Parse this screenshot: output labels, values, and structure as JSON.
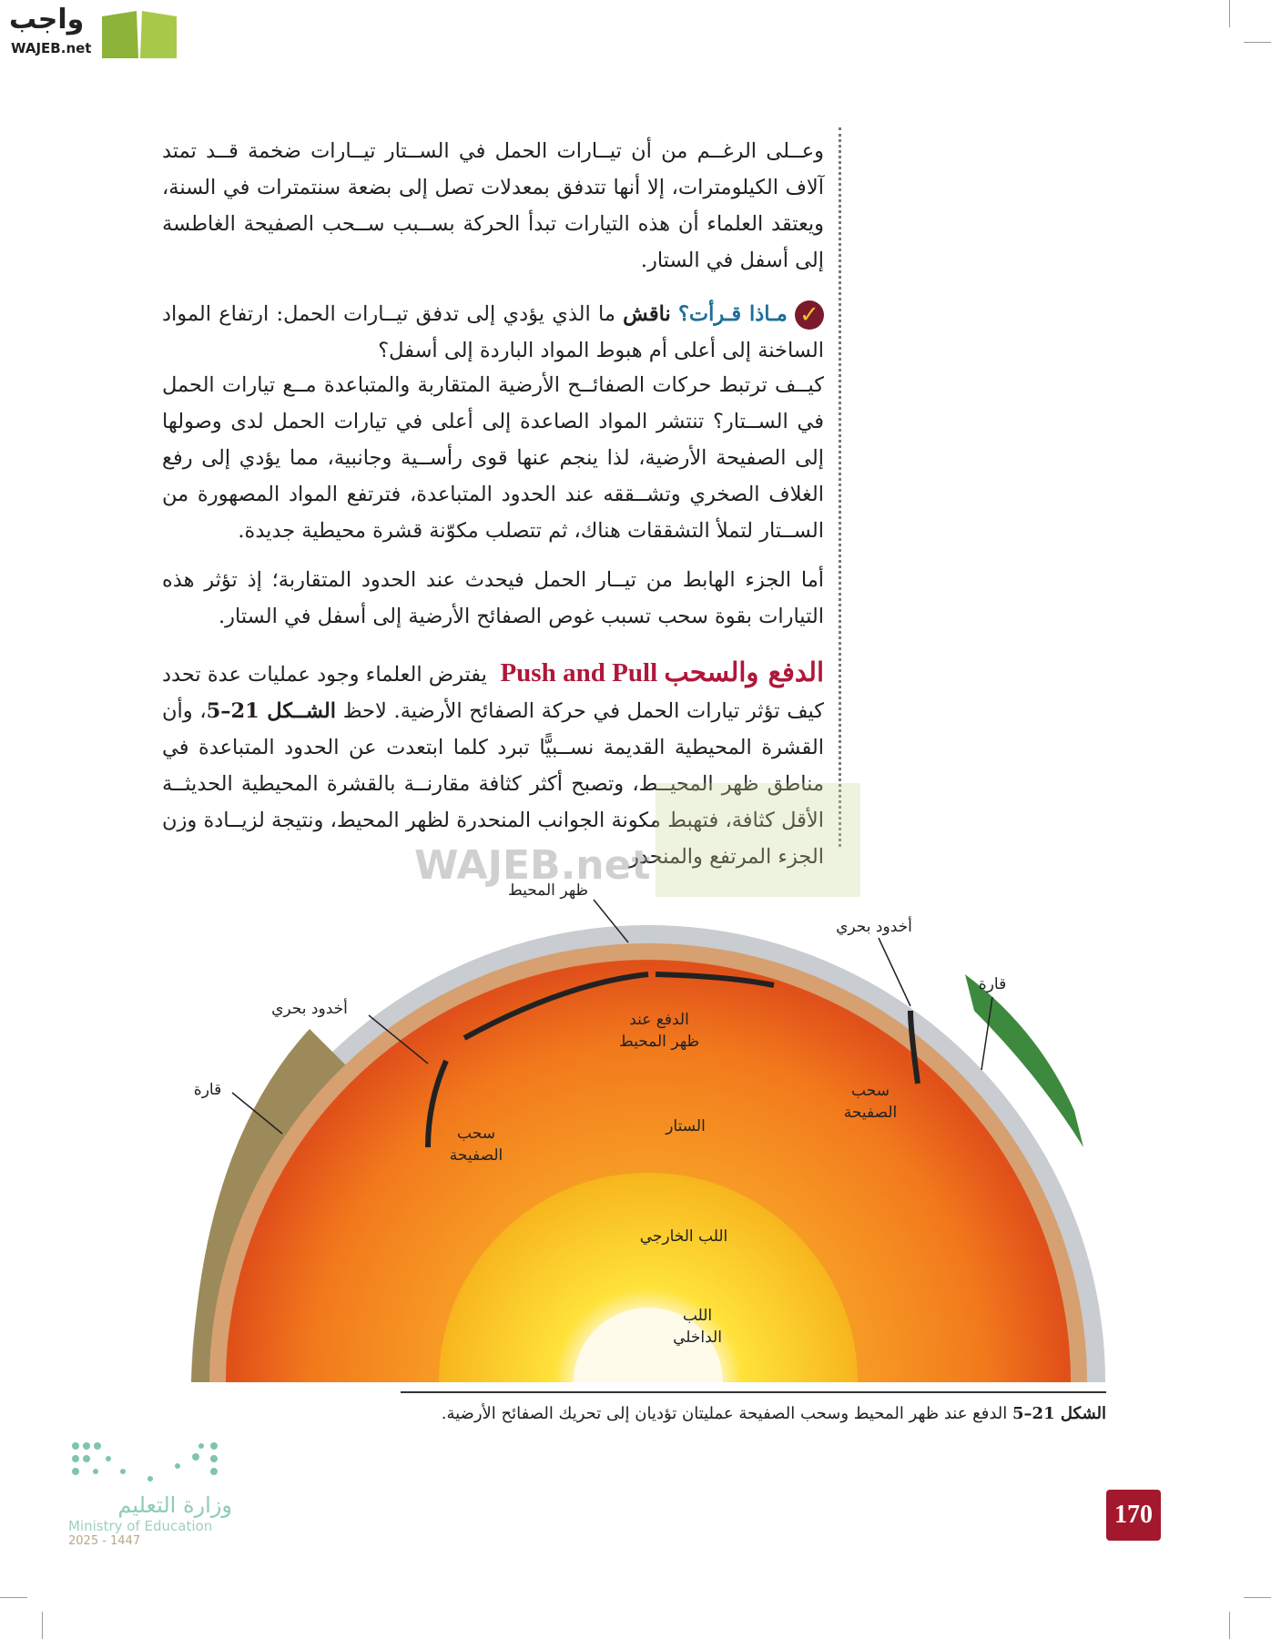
{
  "logo": {
    "arabic": "واجب",
    "latin": "WAJEB.net"
  },
  "watermark": {
    "arabic": "واجب",
    "latin": "WAJEB.net"
  },
  "paragraphs": {
    "p1": "وعــلى الرغــم من أن تيــارات الحمل في الســتار تيــارات ضخمة قــد تمتد آلاف الكيلومترات، إلا أنها تتدفق بمعدلات تصل إلى بضعة سنتمترات في السنة، ويعتقد العلماء أن هذه التيارات تبدأ الحركة بســبب ســحب الصفيحة الغاطسة إلى أسفل في الستار.",
    "check_label": "مـاذا قـرأت؟",
    "check_verb": "ناقش",
    "check_text": "ما الذي يؤدي إلى تدفق تيــارات الحمل: ارتفاع المواد الساخنة إلى أعلى أم هبوط المواد الباردة إلى أسفل؟",
    "p2": "كيــف ترتبط حركات الصفائــح الأرضية المتقاربة والمتباعدة مــع تيارات الحمل في الســتار؟ تنتشر المواد الصاعدة إلى أعلى في تيارات الحمل لدى وصولها إلى الصفيحة الأرضية، لذا ينجم عنها قوى رأســية وجانبية، مما يؤدي إلى رفع الغلاف الصخري وتشــققه عند الحدود المتباعدة، فترتفع المواد المصهورة من الســتار لتملأ التشققات هناك، ثم تتصلب مكوّنة قشرة محيطية جديدة.",
    "p3": "أما الجزء الهابط من تيــار الحمل فيحدث عند الحدود المتقاربة؛ إذ تؤثر هذه التيارات بقوة سحب تسبب غوص الصفائح الأرضية إلى أسفل في الستار.",
    "heading_ar": "الدفع والسحب",
    "heading_en": "Push and Pull",
    "p4a": "يفترض العلماء وجود عمليات عدة تحدد كيف تؤثر تيارات الحمل في حركة الصفائح الأرضية. لاحظ",
    "p4_fig": "الشــكل 21–5",
    "p4b": "، وأن القشرة المحيطية القديمة نســبيًّا تبرد كلما ابتعدت عن الحدود المتباعدة في مناطق ظهر المحيــط، وتصبح أكثر كثافة مقارنــة بالقشرة المحيطية الحديثــة الأقل كثافة، فتهبط مكونة الجوانب المنحدرة لظهر المحيط، ونتيجة لزيــادة وزن الجزء المرتفع والمنحدر"
  },
  "figure": {
    "labels": {
      "ridge": "ظهر المحيط",
      "trench_right": "أخدود بحري",
      "continent_right": "قارة",
      "trench_left": "أخدود بحري",
      "continent_left": "قارة",
      "push": "الدفع عند ظهر المحيط",
      "pull_right": "سحب الصفيحة",
      "mantle": "الستار",
      "pull_left": "سحب الصفيحة",
      "outer_core": "اللب الخارجي",
      "inner_core": "اللب الداخلي"
    },
    "caption_num": "الشكل 21–5",
    "caption_text": "الدفع عند ظهر المحيط وسحب الصفيحة عمليتان تؤديان إلى تحريك الصفائح الأرضية."
  },
  "page_number": "170",
  "ministry": {
    "arabic": "وزارة التعليم",
    "english": "Ministry of Education",
    "year": "2025 - 1447"
  },
  "colors": {
    "accent_red": "#b0173a",
    "accent_blue": "#1d6f99",
    "page_box": "#a3182c",
    "logo_green": "#8db33a"
  }
}
